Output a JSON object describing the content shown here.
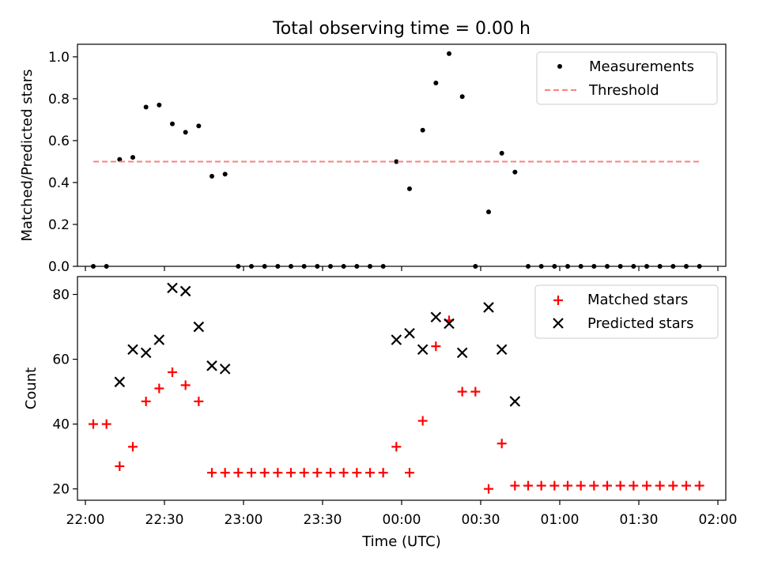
{
  "title": "Total observing time = 0.00 h",
  "x_tick_labels": [
    "22:00",
    "22:30",
    "23:00",
    "23:30",
    "00:00",
    "00:30",
    "01:00",
    "01:30",
    "02:00"
  ],
  "xlabel": "Time (UTC)",
  "chart_data": [
    {
      "type": "scatter",
      "ylabel": "Matched/Predicted stars",
      "ylim": [
        0,
        1.06
      ],
      "yticks": [
        0.0,
        0.2,
        0.4,
        0.6,
        0.8,
        1.0
      ],
      "y_tick_labels": [
        "0.0",
        "0.2",
        "0.4",
        "0.6",
        "0.8",
        "1.0"
      ],
      "xlim": [
        "21:57",
        "02:03"
      ],
      "legend_position": "top-right",
      "series": [
        {
          "name": "Measurements",
          "marker": "dot",
          "color": "#000000",
          "x": [
            "22:03",
            "22:08",
            "22:13",
            "22:18",
            "22:23",
            "22:28",
            "22:33",
            "22:38",
            "22:43",
            "22:48",
            "22:53",
            "22:58",
            "23:03",
            "23:08",
            "23:13",
            "23:18",
            "23:23",
            "23:28",
            "23:33",
            "23:38",
            "23:43",
            "23:48",
            "23:53",
            "23:58",
            "00:03",
            "00:08",
            "00:13",
            "00:18",
            "00:23",
            "00:28",
            "00:33",
            "00:38",
            "00:43",
            "00:48",
            "00:53",
            "00:58",
            "01:03",
            "01:08",
            "01:13",
            "01:18",
            "01:23",
            "01:28",
            "01:33",
            "01:38",
            "01:43",
            "01:48",
            "01:53"
          ],
          "y": [
            0,
            0,
            0.51,
            0.52,
            0.76,
            0.77,
            0.68,
            0.64,
            0.67,
            0.43,
            0.44,
            0,
            0,
            0,
            0,
            0,
            0,
            0,
            0,
            0,
            0,
            0,
            0,
            0.5,
            0.37,
            0.65,
            0.875,
            1.015,
            0.81,
            0,
            0.26,
            0.54,
            0.45,
            0,
            0,
            0,
            0,
            0,
            0,
            0,
            0,
            0,
            0,
            0,
            0,
            0,
            0
          ]
        },
        {
          "name": "Threshold",
          "style": "dashed",
          "color": "#ff7f7f",
          "x": [
            "22:03",
            "01:53"
          ],
          "y": [
            0.5,
            0.5
          ]
        }
      ]
    },
    {
      "type": "scatter",
      "ylabel": "Count",
      "ylim": [
        16.5,
        85.5
      ],
      "yticks": [
        20,
        40,
        60,
        80
      ],
      "y_tick_labels": [
        "20",
        "40",
        "60",
        "80"
      ],
      "xlim": [
        "21:57",
        "02:03"
      ],
      "legend_position": "top-right",
      "series": [
        {
          "name": "Matched stars",
          "marker": "plus",
          "color": "#ff0000",
          "x": [
            "22:03",
            "22:08",
            "22:13",
            "22:18",
            "22:23",
            "22:28",
            "22:33",
            "22:38",
            "22:43",
            "22:48",
            "22:53",
            "22:58",
            "23:03",
            "23:08",
            "23:13",
            "23:18",
            "23:23",
            "23:28",
            "23:33",
            "23:38",
            "23:43",
            "23:48",
            "23:53",
            "23:58",
            "00:03",
            "00:08",
            "00:13",
            "00:18",
            "00:23",
            "00:28",
            "00:33",
            "00:38",
            "00:43",
            "00:48",
            "00:53",
            "00:58",
            "01:03",
            "01:08",
            "01:13",
            "01:18",
            "01:23",
            "01:28",
            "01:33",
            "01:38",
            "01:43",
            "01:48",
            "01:53"
          ],
          "y": [
            40,
            40,
            27,
            33,
            47,
            51,
            56,
            52,
            47,
            25,
            25,
            25,
            25,
            25,
            25,
            25,
            25,
            25,
            25,
            25,
            25,
            25,
            25,
            33,
            25,
            41,
            64,
            72,
            50,
            50,
            20,
            34,
            21,
            21,
            21,
            21,
            21,
            21,
            21,
            21,
            21,
            21,
            21,
            21,
            21,
            21,
            21
          ]
        },
        {
          "name": "Predicted stars",
          "marker": "x",
          "color": "#000000",
          "x": [
            "22:13",
            "22:18",
            "22:23",
            "22:28",
            "22:33",
            "22:38",
            "22:43",
            "22:48",
            "22:53",
            "23:58",
            "00:03",
            "00:08",
            "00:13",
            "00:18",
            "00:23",
            "00:33",
            "00:38",
            "00:43"
          ],
          "y": [
            53,
            63,
            62,
            66,
            82,
            81,
            70,
            58,
            57,
            66,
            68,
            63,
            73,
            71,
            62,
            76,
            63,
            47
          ]
        }
      ]
    }
  ]
}
